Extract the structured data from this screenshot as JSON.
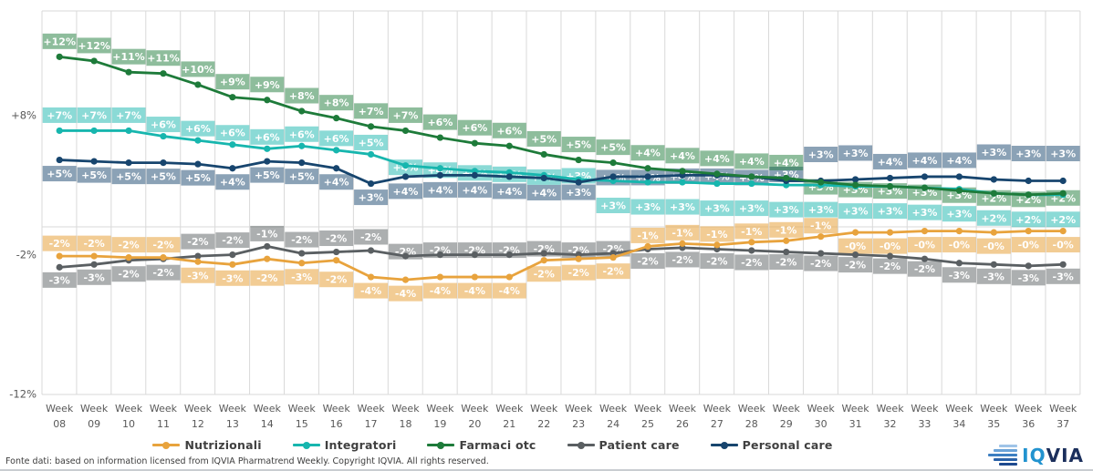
{
  "chart_data": {
    "type": "line",
    "title": "",
    "xlabel_word": "Week",
    "weeks": [
      "08",
      "09",
      "10",
      "11",
      "12",
      "13",
      "14",
      "15",
      "16",
      "17",
      "18",
      "19",
      "20",
      "21",
      "22",
      "23",
      "24",
      "25",
      "26",
      "27",
      "28",
      "29",
      "30",
      "31",
      "32",
      "33",
      "34",
      "35",
      "36",
      "37"
    ],
    "y_ticks": [
      {
        "label": "+8%",
        "value": 8
      },
      {
        "label": "-2%",
        "value": -2
      },
      {
        "label": "-12%",
        "value": -12
      }
    ],
    "ylim": [
      -13,
      15.5
    ],
    "grid": "vertical-between-categories, zero-line",
    "legend_position": "bottom",
    "series": [
      {
        "name": "Nutrizionali",
        "color": "#E8A33D",
        "label_bg": "rgba(232,163,61,0.55)",
        "labels": [
          "-2%",
          "-2%",
          "-2%",
          "-2%",
          "-3%",
          "-3%",
          "-2%",
          "-3%",
          "-2%",
          "-4%",
          "-4%",
          "-4%",
          "-4%",
          "-4%",
          "-2%",
          "-2%",
          "-2%",
          "-1%",
          "-1%",
          "-1%",
          "-1%",
          "-1%",
          "-1%",
          "-0%",
          "-0%",
          "-0%",
          "-0%",
          "-0%",
          "-0%",
          "-0%"
        ],
        "values": [
          -2.1,
          -2.1,
          -2.2,
          -2.2,
          -2.5,
          -2.7,
          -2.3,
          -2.6,
          -2.4,
          -3.6,
          -3.8,
          -3.6,
          -3.6,
          -3.6,
          -2.4,
          -2.3,
          -2.2,
          -1.4,
          -1.2,
          -1.3,
          -1.1,
          -1.0,
          -0.7,
          -0.4,
          -0.4,
          -0.3,
          -0.3,
          -0.4,
          -0.3,
          -0.3
        ]
      },
      {
        "name": "Integratori",
        "color": "#17B6AE",
        "label_bg": "rgba(23,182,174,0.5)",
        "labels": [
          "+7%",
          "+7%",
          "+7%",
          "+6%",
          "+6%",
          "+6%",
          "+6%",
          "+6%",
          "+6%",
          "+5%",
          "+4%",
          "+4%",
          "+4%",
          "+4%",
          "+4%",
          "+3%",
          "+3%",
          "+3%",
          "+3%",
          "+3%",
          "+3%",
          "+3%",
          "+3%",
          "+3%",
          "+3%",
          "+3%",
          "+3%",
          "+2%",
          "+2%",
          "+2%"
        ],
        "values": [
          6.9,
          6.9,
          6.9,
          6.5,
          6.2,
          5.9,
          5.6,
          5.8,
          5.5,
          5.2,
          4.4,
          4.2,
          4.0,
          3.9,
          3.7,
          3.4,
          3.3,
          3.2,
          3.2,
          3.1,
          3.1,
          3.0,
          3.0,
          2.9,
          2.9,
          2.8,
          2.7,
          2.4,
          2.3,
          2.3
        ]
      },
      {
        "name": "Farmaci otc",
        "color": "#1E7B3A",
        "label_bg": "rgba(30,123,58,0.5)",
        "labels": [
          "+12%",
          "+12%",
          "+11%",
          "+11%",
          "+10%",
          "+9%",
          "+9%",
          "+8%",
          "+8%",
          "+7%",
          "+7%",
          "+6%",
          "+6%",
          "+6%",
          "+5%",
          "+5%",
          "+5%",
          "+4%",
          "+4%",
          "+4%",
          "+4%",
          "+4%",
          "+3%",
          "+3%",
          "+3%",
          "+3%",
          "+3%",
          "+2%",
          "+2%",
          "+2%"
        ],
        "values": [
          12.2,
          11.9,
          11.1,
          11.0,
          10.2,
          9.3,
          9.1,
          8.3,
          7.8,
          7.2,
          6.9,
          6.4,
          6.0,
          5.8,
          5.2,
          4.8,
          4.6,
          4.2,
          4.0,
          3.8,
          3.6,
          3.5,
          3.2,
          3.0,
          2.9,
          2.8,
          2.6,
          2.4,
          2.3,
          2.4
        ]
      },
      {
        "name": "Patient care",
        "color": "#5A5F62",
        "label_bg": "rgba(90,95,98,0.5)",
        "labels": [
          "-3%",
          "-3%",
          "-2%",
          "-2%",
          "-2%",
          "-2%",
          "-1%",
          "-2%",
          "-2%",
          "-2%",
          "-2%",
          "-2%",
          "-2%",
          "-2%",
          "-2%",
          "-2%",
          "-2%",
          "-2%",
          "-2%",
          "-2%",
          "-2%",
          "-2%",
          "-2%",
          "-2%",
          "-2%",
          "-2%",
          "-3%",
          "-3%",
          "-3%",
          "-3%"
        ],
        "values": [
          -2.9,
          -2.7,
          -2.4,
          -2.3,
          -2.1,
          -2.0,
          -1.4,
          -1.9,
          -1.8,
          -1.7,
          -2.1,
          -2.0,
          -2.0,
          -2.0,
          -1.9,
          -2.0,
          -1.9,
          -1.6,
          -1.5,
          -1.6,
          -1.7,
          -1.8,
          -1.9,
          -2.0,
          -2.1,
          -2.3,
          -2.6,
          -2.7,
          -2.8,
          -2.7
        ]
      },
      {
        "name": "Personal care",
        "color": "#17456E",
        "label_bg": "rgba(23,69,110,0.5)",
        "labels": [
          "+5%",
          "+5%",
          "+5%",
          "+5%",
          "+5%",
          "+4%",
          "+5%",
          "+5%",
          "+4%",
          "+3%",
          "+4%",
          "+4%",
          "+4%",
          "+4%",
          "+4%",
          "+3%",
          "+4%",
          "+4%",
          "+4%",
          "+4%",
          "+4%",
          "+3%",
          "+3%",
          "+3%",
          "+4%",
          "+4%",
          "+4%",
          "+3%",
          "+3%",
          "+3%"
        ],
        "values": [
          4.8,
          4.7,
          4.6,
          4.6,
          4.5,
          4.2,
          4.7,
          4.6,
          4.2,
          3.1,
          3.6,
          3.7,
          3.7,
          3.6,
          3.5,
          3.2,
          3.6,
          3.6,
          3.7,
          3.7,
          3.6,
          3.3,
          3.3,
          3.4,
          3.5,
          3.6,
          3.6,
          3.4,
          3.3,
          3.3
        ]
      }
    ]
  },
  "legend": {
    "items": [
      "Nutrizionali",
      "Integratori",
      "Farmaci otc",
      "Patient care",
      "Personal care"
    ]
  },
  "footer": {
    "text": "Fonte dati: based on information licensed from IQVIA Pharmatrend Weekly. Copyright IQVIA. All rights reserved."
  },
  "logo": {
    "text_iq": "IQ",
    "text_via": "VIA"
  }
}
